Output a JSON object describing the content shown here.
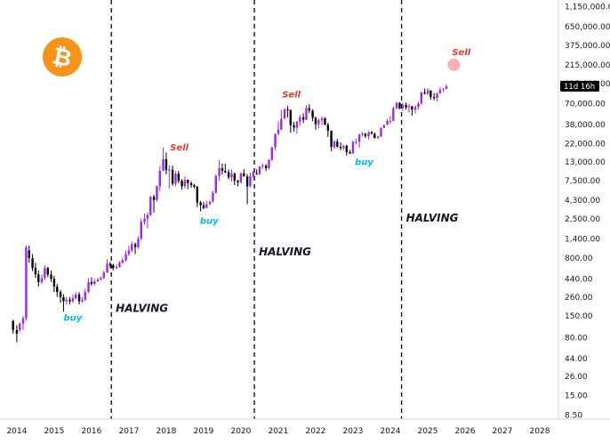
{
  "chart_data": {
    "type": "candlestick",
    "scale": "log",
    "y_ticks": [
      "1,150,000.00",
      "650,000.00",
      "375,000.00",
      "215,000.00",
      "125,000.00",
      "70,000.00",
      "38,000.00",
      "22,000.00",
      "13,000.00",
      "7,500.00",
      "4,300.00",
      "2,500.00",
      "1,400.00",
      "800.00",
      "440.00",
      "260.00",
      "150.00",
      "80.00",
      "44.00",
      "26.00",
      "15.00",
      "8.50"
    ],
    "y_tick_values": [
      1150000,
      650000,
      375000,
      215000,
      125000,
      70000,
      38000,
      22000,
      13000,
      7500,
      4300,
      2500,
      1400,
      800,
      440,
      260,
      150,
      80,
      44,
      26,
      15,
      8.5
    ],
    "x_ticks": [
      "2014",
      "2015",
      "2016",
      "2017",
      "2018",
      "2019",
      "2020",
      "2021",
      "2022",
      "2023",
      "2024",
      "2025",
      "2026",
      "2027",
      "2028"
    ],
    "x_tick_values": [
      2014,
      2015,
      2016,
      2017,
      2018,
      2019,
      2020,
      2021,
      2022,
      2023,
      2024,
      2025,
      2026,
      2027,
      2028
    ],
    "x_range": [
      2013.55,
      2028.5
    ],
    "y_range": [
      7.6,
      1400000
    ],
    "countdown_label": "11d 16h",
    "halvings": [
      {
        "date": 2016.53,
        "label": "HALVING",
        "label_price": 170
      },
      {
        "date": 2020.36,
        "label": "HALVING",
        "label_price": 870
      },
      {
        "date": 2024.3,
        "label": "HALVING",
        "label_price": 2300
      }
    ],
    "annotations": [
      {
        "text": "buy",
        "date": 2015.5,
        "price": 130,
        "color": "#00bcd4"
      },
      {
        "text": "Sell",
        "date": 2018.35,
        "price": 18000,
        "color": "#e53935"
      },
      {
        "text": "buy",
        "date": 2019.15,
        "price": 2150,
        "color": "#00bcd4"
      },
      {
        "text": "Sell",
        "date": 2021.35,
        "price": 84000,
        "color": "#e53935"
      },
      {
        "text": "buy",
        "date": 2023.3,
        "price": 11800,
        "color": "#00bcd4"
      },
      {
        "text": "Sell",
        "date": 2025.9,
        "price": 285000,
        "color": "#e53935"
      }
    ],
    "projection_point": {
      "date": 2025.7,
      "price": 215000,
      "color": "#f5a5a5"
    },
    "candles": [
      [
        2013.9,
        130,
        100,
        135,
        90
      ],
      [
        2014.0,
        100,
        90,
        115,
        70
      ],
      [
        2014.08,
        100,
        120,
        125,
        95
      ],
      [
        2014.17,
        120,
        140,
        150,
        100
      ],
      [
        2014.25,
        140,
        1100,
        1150,
        130
      ],
      [
        2014.33,
        1000,
        800,
        1150,
        700
      ],
      [
        2014.42,
        800,
        600,
        900,
        550
      ],
      [
        2014.5,
        600,
        500,
        700,
        450
      ],
      [
        2014.58,
        500,
        400,
        560,
        350
      ],
      [
        2014.67,
        400,
        450,
        500,
        380
      ],
      [
        2014.75,
        450,
        600,
        650,
        420
      ],
      [
        2014.83,
        600,
        500,
        620,
        460
      ],
      [
        2014.92,
        500,
        440,
        560,
        400
      ],
      [
        2015.0,
        440,
        350,
        480,
        300
      ],
      [
        2015.08,
        350,
        300,
        380,
        260
      ],
      [
        2015.17,
        300,
        260,
        320,
        220
      ],
      [
        2015.25,
        260,
        230,
        280,
        170
      ],
      [
        2015.33,
        230,
        240,
        260,
        210
      ],
      [
        2015.42,
        240,
        230,
        260,
        210
      ],
      [
        2015.5,
        230,
        250,
        280,
        220
      ],
      [
        2015.58,
        250,
        280,
        300,
        240
      ],
      [
        2015.67,
        280,
        230,
        300,
        210
      ],
      [
        2015.75,
        230,
        240,
        260,
        220
      ],
      [
        2015.83,
        240,
        300,
        330,
        230
      ],
      [
        2015.92,
        300,
        400,
        450,
        290
      ],
      [
        2016.0,
        400,
        380,
        460,
        360
      ],
      [
        2016.08,
        380,
        410,
        440,
        360
      ],
      [
        2016.17,
        410,
        430,
        450,
        400
      ],
      [
        2016.25,
        430,
        450,
        470,
        420
      ],
      [
        2016.33,
        450,
        530,
        550,
        440
      ],
      [
        2016.42,
        530,
        680,
        780,
        520
      ],
      [
        2016.5,
        680,
        650,
        720,
        600
      ],
      [
        2016.58,
        650,
        600,
        680,
        560
      ],
      [
        2016.67,
        600,
        620,
        660,
        580
      ],
      [
        2016.75,
        620,
        700,
        740,
        600
      ],
      [
        2016.83,
        700,
        750,
        800,
        680
      ],
      [
        2016.92,
        750,
        900,
        1000,
        720
      ],
      [
        2017.0,
        900,
        1000,
        1150,
        850
      ],
      [
        2017.08,
        1000,
        1200,
        1300,
        950
      ],
      [
        2017.17,
        1200,
        1100,
        1250,
        900
      ],
      [
        2017.25,
        1100,
        1400,
        1500,
        1050
      ],
      [
        2017.33,
        1400,
        2300,
        2500,
        1350
      ],
      [
        2017.42,
        2300,
        2500,
        2900,
        2100
      ],
      [
        2017.5,
        2500,
        2800,
        3000,
        1900
      ],
      [
        2017.58,
        2800,
        4700,
        4900,
        2700
      ],
      [
        2017.67,
        4700,
        4300,
        5000,
        3000
      ],
      [
        2017.75,
        4300,
        6400,
        6500,
        4100
      ],
      [
        2017.83,
        6400,
        10000,
        11500,
        5500
      ],
      [
        2017.92,
        10000,
        14000,
        19700,
        11000
      ],
      [
        2018.0,
        14000,
        10200,
        17000,
        9000
      ],
      [
        2018.08,
        10200,
        10300,
        11700,
        6000
      ],
      [
        2018.17,
        10300,
        6900,
        11600,
        6500
      ],
      [
        2018.25,
        6900,
        9200,
        9900,
        6400
      ],
      [
        2018.33,
        9200,
        7500,
        10000,
        7000
      ],
      [
        2018.42,
        7500,
        6400,
        7800,
        5800
      ],
      [
        2018.5,
        6400,
        7700,
        8500,
        6000
      ],
      [
        2018.58,
        7700,
        7000,
        7800,
        5900
      ],
      [
        2018.67,
        7000,
        6600,
        7400,
        6100
      ],
      [
        2018.75,
        6600,
        6300,
        6800,
        6000
      ],
      [
        2018.83,
        6300,
        4000,
        6500,
        3500
      ],
      [
        2018.92,
        4000,
        3700,
        4200,
        3100
      ],
      [
        2019.0,
        3700,
        3400,
        4100,
        3300
      ],
      [
        2019.08,
        3400,
        3800,
        4200,
        3400
      ],
      [
        2019.17,
        3800,
        4100,
        4200,
        3700
      ],
      [
        2019.25,
        4100,
        5300,
        5600,
        4000
      ],
      [
        2019.33,
        5300,
        8600,
        9000,
        5200
      ],
      [
        2019.42,
        8600,
        10800,
        13800,
        7500
      ],
      [
        2019.5,
        10800,
        10000,
        12400,
        9000
      ],
      [
        2019.58,
        10000,
        9600,
        12300,
        9300
      ],
      [
        2019.67,
        9600,
        8300,
        10400,
        7800
      ],
      [
        2019.75,
        8300,
        9200,
        10500,
        7300
      ],
      [
        2019.83,
        9200,
        7500,
        9500,
        6600
      ],
      [
        2019.92,
        7500,
        7200,
        7700,
        6400
      ],
      [
        2020.0,
        7200,
        9300,
        9600,
        6900
      ],
      [
        2020.08,
        9300,
        8500,
        10500,
        8500
      ],
      [
        2020.17,
        8500,
        6400,
        9100,
        3800
      ],
      [
        2020.25,
        6400,
        8600,
        9500,
        6200
      ],
      [
        2020.33,
        8600,
        9400,
        10000,
        8100
      ],
      [
        2020.42,
        9400,
        9100,
        10400,
        8900
      ],
      [
        2020.5,
        9100,
        11300,
        11400,
        8900
      ],
      [
        2020.58,
        11300,
        11600,
        12400,
        10600
      ],
      [
        2020.67,
        11600,
        10800,
        12100,
        9900
      ],
      [
        2020.75,
        10800,
        13800,
        14000,
        10400
      ],
      [
        2020.83,
        13800,
        19700,
        19900,
        13200
      ],
      [
        2020.92,
        19700,
        29000,
        29300,
        18000
      ],
      [
        2021.0,
        29000,
        33100,
        41900,
        28100
      ],
      [
        2021.08,
        33100,
        45200,
        58300,
        32300
      ],
      [
        2021.17,
        45200,
        58800,
        61800,
        44900
      ],
      [
        2021.25,
        58800,
        57700,
        64900,
        47000
      ],
      [
        2021.33,
        57700,
        37300,
        59500,
        30000
      ],
      [
        2021.42,
        37300,
        35000,
        41300,
        31000
      ],
      [
        2021.5,
        35000,
        41500,
        42500,
        29300
      ],
      [
        2021.58,
        41500,
        47100,
        50500,
        37300
      ],
      [
        2021.67,
        47100,
        43800,
        52900,
        39600
      ],
      [
        2021.75,
        43800,
        61300,
        67000,
        43300
      ],
      [
        2021.83,
        61300,
        57000,
        69000,
        53300
      ],
      [
        2021.92,
        57000,
        46200,
        59000,
        42000
      ],
      [
        2022.0,
        46200,
        38500,
        47900,
        32900
      ],
      [
        2022.08,
        38500,
        43200,
        45800,
        34300
      ],
      [
        2022.17,
        43200,
        45500,
        48200,
        37200
      ],
      [
        2022.25,
        45500,
        37700,
        47400,
        37600
      ],
      [
        2022.33,
        37700,
        31800,
        40000,
        26700
      ],
      [
        2022.42,
        31800,
        19900,
        32300,
        17600
      ],
      [
        2022.5,
        19900,
        23300,
        24600,
        18800
      ],
      [
        2022.58,
        23300,
        20000,
        25200,
        19600
      ],
      [
        2022.67,
        20000,
        19400,
        22700,
        18100
      ],
      [
        2022.75,
        19400,
        20500,
        21000,
        18200
      ],
      [
        2022.83,
        20500,
        17200,
        21400,
        15500
      ],
      [
        2022.92,
        17200,
        16500,
        18300,
        16300
      ],
      [
        2023.0,
        16500,
        23100,
        23900,
        16500
      ],
      [
        2023.08,
        23100,
        23100,
        25200,
        21400
      ],
      [
        2023.17,
        23100,
        28500,
        29200,
        19500
      ],
      [
        2023.25,
        28500,
        29300,
        30900,
        26900
      ],
      [
        2023.33,
        29300,
        27200,
        29800,
        25800
      ],
      [
        2023.42,
        27200,
        30500,
        31400,
        24800
      ],
      [
        2023.5,
        30500,
        29200,
        31800,
        28900
      ],
      [
        2023.58,
        29200,
        25900,
        30200,
        25400
      ],
      [
        2023.67,
        25900,
        27000,
        27500,
        24900
      ],
      [
        2023.75,
        27000,
        34600,
        35200,
        26600
      ],
      [
        2023.83,
        34600,
        37700,
        38000,
        34100
      ],
      [
        2023.92,
        37700,
        42300,
        44700,
        37600
      ],
      [
        2024.0,
        42300,
        42600,
        48900,
        38600
      ],
      [
        2024.08,
        42600,
        61200,
        64000,
        41900
      ],
      [
        2024.17,
        61200,
        71300,
        73800,
        59100
      ],
      [
        2024.25,
        71300,
        60700,
        72700,
        59600
      ],
      [
        2024.33,
        60700,
        67500,
        71900,
        56500
      ],
      [
        2024.42,
        67500,
        62700,
        72000,
        58400
      ],
      [
        2024.5,
        62700,
        64600,
        70000,
        53500
      ],
      [
        2024.58,
        64600,
        59000,
        65600,
        49100
      ],
      [
        2024.67,
        59000,
        63300,
        66500,
        52600
      ],
      [
        2024.75,
        63300,
        70200,
        73600,
        58900
      ],
      [
        2024.83,
        70200,
        96400,
        99600,
        67500
      ],
      [
        2024.92,
        96400,
        93400,
        108300,
        90700
      ],
      [
        2025.0,
        93400,
        102400,
        109500,
        89200
      ],
      [
        2025.08,
        102400,
        84300,
        102500,
        78200
      ],
      [
        2025.17,
        84300,
        82500,
        95000,
        76600
      ],
      [
        2025.25,
        82500,
        94200,
        95700,
        74500
      ],
      [
        2025.33,
        94200,
        104600,
        111900,
        93300
      ],
      [
        2025.42,
        104600,
        107100,
        110600,
        98200
      ],
      [
        2025.5,
        107100,
        115700,
        123100,
        105100
      ]
    ]
  }
}
